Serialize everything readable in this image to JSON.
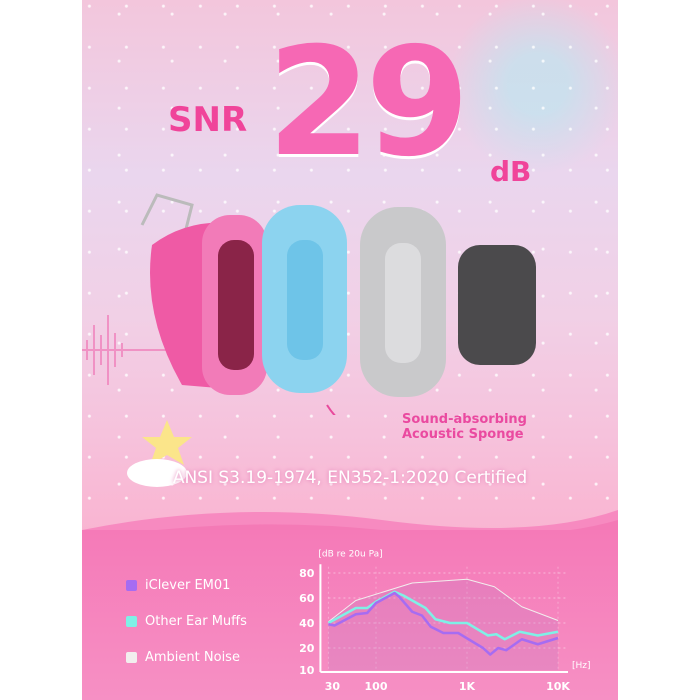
{
  "headline": {
    "prefix": "SNR",
    "value": "29",
    "unit": "dB"
  },
  "callout": {
    "line1": "Sound-absorbing",
    "line2": "Acoustic Sponge"
  },
  "certification": "ANSI S3.19-1974, EN352-1:2020 Certified",
  "colors": {
    "iclever": "#a66cf2",
    "other": "#7ff0e6",
    "ambient": "#f2eeee",
    "accent": "#f0449a"
  },
  "chart_data": {
    "type": "line",
    "ylabel": "[dB re 20u Pa]",
    "xlabel": "[Hz]",
    "x_scale": "log",
    "xlim": [
      30,
      10000
    ],
    "x_ticks": [
      "30",
      "100",
      "1K",
      "10K"
    ],
    "y_ticks": [
      "80",
      "60",
      "40",
      "20",
      "10"
    ],
    "grid": true,
    "legend_position": "left",
    "series": [
      {
        "name": "iClever EM01",
        "color": "#a66cf2",
        "points": [
          [
            30,
            39
          ],
          [
            35,
            38
          ],
          [
            60,
            47
          ],
          [
            80,
            48
          ],
          [
            100,
            56
          ],
          [
            160,
            64
          ],
          [
            180,
            61
          ],
          [
            250,
            49
          ],
          [
            320,
            46
          ],
          [
            400,
            37
          ],
          [
            550,
            32
          ],
          [
            800,
            32
          ],
          [
            1500,
            20
          ],
          [
            1800,
            17
          ],
          [
            2200,
            20
          ],
          [
            2700,
            19
          ],
          [
            4000,
            27
          ],
          [
            6000,
            23
          ],
          [
            10000,
            28
          ]
        ]
      },
      {
        "name": "Other Ear Muffs",
        "color": "#7ff0e6",
        "points": [
          [
            30,
            40
          ],
          [
            60,
            52
          ],
          [
            80,
            52
          ],
          [
            100,
            57
          ],
          [
            160,
            65
          ],
          [
            200,
            62
          ],
          [
            350,
            52
          ],
          [
            450,
            43
          ],
          [
            650,
            40
          ],
          [
            1000,
            40
          ],
          [
            1700,
            30
          ],
          [
            2100,
            31
          ],
          [
            2600,
            27
          ],
          [
            3800,
            33
          ],
          [
            6000,
            30
          ],
          [
            10000,
            33
          ]
        ]
      },
      {
        "name": "Ambient Noise",
        "color": "#f2eeee",
        "points": [
          [
            30,
            41
          ],
          [
            60,
            58
          ],
          [
            250,
            72
          ],
          [
            1000,
            75
          ],
          [
            2000,
            69
          ],
          [
            4000,
            53
          ],
          [
            10000,
            42
          ]
        ]
      }
    ]
  }
}
